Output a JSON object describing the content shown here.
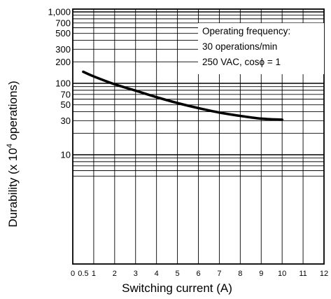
{
  "chart_data": {
    "type": "line",
    "title": "",
    "xlabel": "Switching current (A)",
    "ylabel": "Durability  (x 10",
    "ylabel_superscript": "4",
    "ylabel_suffix": " operations)",
    "x_scale": "linear",
    "y_scale": "log",
    "xlim": [
      0,
      12
    ],
    "ylim": [
      5,
      1000
    ],
    "x_ticks": [
      0,
      0.5,
      1,
      2,
      3,
      4,
      5,
      6,
      7,
      8,
      9,
      10,
      11,
      12
    ],
    "x_tick_labels": [
      "0",
      "0.5",
      "1",
      "2",
      "3",
      "4",
      "5",
      "6",
      "7",
      "8",
      "9",
      "10",
      "11",
      "12"
    ],
    "y_ticks": [
      10,
      30,
      50,
      70,
      100,
      200,
      300,
      500,
      700,
      1000
    ],
    "y_tick_labels": [
      "10",
      "30",
      "50",
      "70",
      "100",
      "200",
      "300",
      "500",
      "700",
      "1,000"
    ],
    "grid": true,
    "annotation_lines": [
      "Operating frequency:",
      "30 operations/min",
      "250 VAC, cosϕ = 1"
    ],
    "annotation_position": "top-right",
    "series": [
      {
        "x": [
          0.5,
          1,
          2,
          3,
          4,
          5,
          6,
          7,
          8,
          9,
          10
        ],
        "values": [
          145,
          125,
          97,
          79,
          64,
          53,
          45,
          39,
          35,
          32,
          31
        ]
      }
    ]
  }
}
